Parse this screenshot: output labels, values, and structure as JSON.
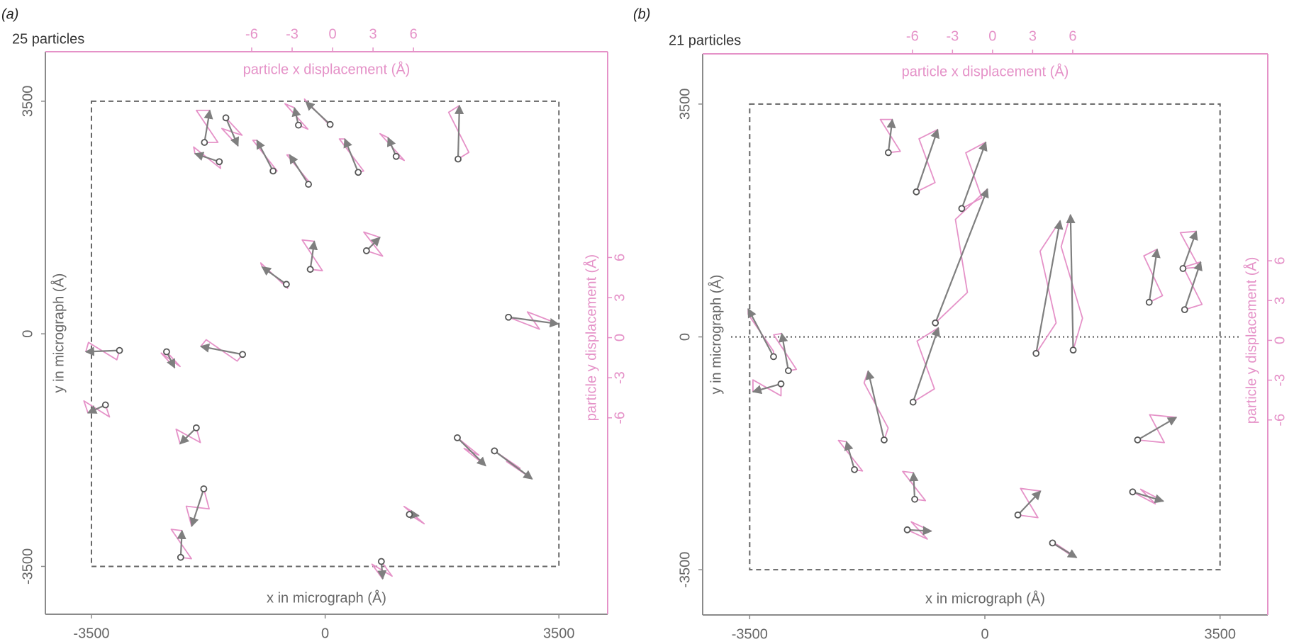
{
  "chart_data": [
    {
      "type": "vector",
      "panel_label": "(a)",
      "count_label": "25 particles",
      "xlabel": "x in micrograph (Å)",
      "ylabel": "y in micrograph (Å)",
      "x2label": "particle x displacement (Å)",
      "y2label": "particle y displacement (Å)",
      "xlim": [
        -4190,
        4230
      ],
      "ylim": [
        -4220,
        4245
      ],
      "xticks": [
        -3500,
        0,
        3500
      ],
      "yticks": [
        -3500,
        0,
        3500
      ],
      "x2lim": [
        -21.3,
        20.4
      ],
      "y2lim": [
        -20.7,
        21.4
      ],
      "x2ticks": [
        -6,
        -3,
        0,
        3,
        6
      ],
      "y2ticks": [
        -6,
        -3,
        0,
        3,
        6
      ],
      "image_bounds": [
        -3500,
        3500
      ],
      "track_color": "#e592c8",
      "arrow_color": "#7f7f7f",
      "particles": [
        {
          "x": -1808,
          "y": 2880,
          "dx": [
            0,
            1.0,
            -0.6,
            0.4
          ],
          "dy": [
            0,
            0.0,
            2.4,
            2.4
          ]
        },
        {
          "x": -1487,
          "y": 3250,
          "dx": [
            0,
            1.2,
            -0.3,
            0.9
          ],
          "dy": [
            0,
            -1.3,
            -0.8,
            -2.1
          ]
        },
        {
          "x": -1586,
          "y": 2590,
          "dx": [
            0,
            0.1,
            -1.9,
            -1.8
          ],
          "dy": [
            0,
            -0.5,
            1.1,
            0.6
          ]
        },
        {
          "x": -780,
          "y": 2450,
          "dx": [
            0,
            0.3,
            -1.5,
            -1.2
          ],
          "dy": [
            0,
            0.0,
            2.3,
            2.3
          ]
        },
        {
          "x": -400,
          "y": 3140,
          "dx": [
            0,
            0.7,
            -1.0,
            -0.3
          ],
          "dy": [
            0,
            -0.3,
            1.6,
            1.3
          ]
        },
        {
          "x": 74,
          "y": 3150,
          "dx": [
            0,
            0.1,
            -1.9,
            -1.8
          ],
          "dy": [
            0,
            -0.2,
            1.9,
            1.7
          ]
        },
        {
          "x": -250,
          "y": 2250,
          "dx": [
            0,
            0.2,
            -1.6,
            -1.4
          ],
          "dy": [
            0,
            0.0,
            2.2,
            2.2
          ]
        },
        {
          "x": 495,
          "y": 2430,
          "dx": [
            0,
            0.4,
            -1.4,
            -1.0
          ],
          "dy": [
            0,
            0.1,
            2.5,
            2.5
          ]
        },
        {
          "x": 1063,
          "y": 2670,
          "dx": [
            0,
            0.6,
            -1.2,
            -0.6
          ],
          "dy": [
            0,
            -0.3,
            1.7,
            1.4
          ]
        },
        {
          "x": 1990,
          "y": 2630,
          "dx": [
            0,
            0.8,
            -0.7,
            0.1
          ],
          "dy": [
            0,
            0.5,
            3.5,
            4.0
          ]
        },
        {
          "x": 618,
          "y": 1250,
          "dx": [
            0,
            1.2,
            -0.2,
            1.0
          ],
          "dy": [
            0,
            -0.4,
            1.4,
            1.0
          ]
        },
        {
          "x": -223,
          "y": 970,
          "dx": [
            0,
            0.9,
            -0.6,
            0.3
          ],
          "dy": [
            0,
            -0.1,
            2.2,
            2.1
          ]
        },
        {
          "x": -581,
          "y": 745,
          "dx": [
            0,
            0.1,
            -1.9,
            -1.8
          ],
          "dy": [
            0,
            -0.3,
            1.6,
            1.3
          ]
        },
        {
          "x": 2745,
          "y": 250,
          "dx": [
            0,
            2.3,
            1.4,
            3.7
          ],
          "dy": [
            0,
            -0.9,
            0.4,
            -0.5
          ]
        },
        {
          "x": -3080,
          "y": -250,
          "dx": [
            0,
            -0.2,
            -2.3,
            -2.5
          ],
          "dy": [
            0,
            -0.7,
            0.6,
            -0.1
          ]
        },
        {
          "x": -2375,
          "y": -270,
          "dx": [
            0,
            1.0,
            -0.4,
            0.6
          ],
          "dy": [
            0,
            -1.1,
            -0.1,
            -1.2
          ]
        },
        {
          "x": -1237,
          "y": -310,
          "dx": [
            0,
            -0.4,
            -2.7,
            -3.1
          ],
          "dy": [
            0,
            -0.5,
            1.1,
            0.6
          ]
        },
        {
          "x": -3290,
          "y": -1070,
          "dx": [
            0,
            0.3,
            -1.6,
            -1.3
          ],
          "dy": [
            0,
            -0.9,
            0.3,
            -0.6
          ]
        },
        {
          "x": -1930,
          "y": -1415,
          "dx": [
            0,
            0.3,
            -1.5,
            -1.2
          ],
          "dy": [
            0,
            -1.1,
            -0.1,
            -1.2
          ]
        },
        {
          "x": 1979,
          "y": -1564,
          "dx": [
            0,
            1.6,
            0.5,
            2.1
          ],
          "dy": [
            0,
            -1.3,
            -0.8,
            -2.1
          ]
        },
        {
          "x": 2535,
          "y": -1762,
          "dx": [
            0,
            1.9,
            0.9,
            2.8
          ],
          "dy": [
            0,
            -1.3,
            -0.8,
            -2.1
          ]
        },
        {
          "x": -1818,
          "y": -2333,
          "dx": [
            0,
            0.4,
            -1.3,
            -0.9
          ],
          "dy": [
            0,
            -1.5,
            -1.3,
            -2.8
          ]
        },
        {
          "x": -2164,
          "y": -3364,
          "dx": [
            0,
            0.8,
            -0.7,
            0.1
          ],
          "dy": [
            0,
            -0.1,
            2.1,
            2.0
          ]
        },
        {
          "x": 1261,
          "y": -2718,
          "dx": [
            0,
            1.1,
            -0.4,
            0.7
          ],
          "dy": [
            0,
            -0.7,
            0.6,
            -0.1
          ]
        },
        {
          "x": 841,
          "y": -3426,
          "dx": [
            0,
            0.8,
            -0.7,
            0.1
          ],
          "dy": [
            0,
            -1.1,
            -0.2,
            -1.3
          ]
        }
      ]
    },
    {
      "type": "vector",
      "panel_label": "(b)",
      "count_label": "21 particles",
      "xlabel": "x in micrograph (Å)",
      "ylabel": "y in micrograph (Å)",
      "x2label": "particle x displacement (Å)",
      "y2label": "particle y displacement (Å)",
      "xlim": [
        -4200,
        4210
      ],
      "ylim": [
        -4180,
        4255
      ],
      "xticks": [
        -3500,
        0,
        3500
      ],
      "yticks": [
        -3500,
        0,
        3500
      ],
      "x2lim": [
        -21.7,
        20.6
      ],
      "y2lim": [
        -20.7,
        21.6
      ],
      "x2ticks": [
        -6,
        -3,
        0,
        3,
        6
      ],
      "y2ticks": [
        -6,
        -3,
        0,
        3,
        6
      ],
      "image_bounds": [
        -3500,
        3500
      ],
      "hline": 0,
      "track_color": "#e592c8",
      "arrow_color": "#7f7f7f",
      "particles": [
        {
          "x": -1437,
          "y": 2770,
          "dx": [
            0,
            0.9,
            -0.6,
            0.3
          ],
          "dy": [
            0,
            0.1,
            2.5,
            2.5
          ]
        },
        {
          "x": -1020,
          "y": 2180,
          "dx": [
            0,
            1.4,
            0.2,
            1.6
          ],
          "dy": [
            0,
            0.7,
            4.0,
            4.7
          ]
        },
        {
          "x": -344,
          "y": 1930,
          "dx": [
            0,
            1.5,
            0.3,
            1.8
          ],
          "dy": [
            0,
            0.8,
            4.2,
            5.0
          ]
        },
        {
          "x": -737,
          "y": 210,
          "dx": [
            0,
            2.4,
            1.5,
            3.9
          ],
          "dy": [
            0,
            2.3,
            7.8,
            10.1
          ]
        },
        {
          "x": -1069,
          "y": -980,
          "dx": [
            0,
            1.6,
            0.3,
            1.9
          ],
          "dy": [
            0,
            1.0,
            4.6,
            5.6
          ]
        },
        {
          "x": 762,
          "y": -248,
          "dx": [
            0,
            1.5,
            0.3,
            1.8
          ],
          "dy": [
            0,
            2.3,
            7.7,
            10.0
          ]
        },
        {
          "x": 1314,
          "y": -198,
          "dx": [
            0,
            0.7,
            -0.9,
            -0.2
          ],
          "dy": [
            0,
            2.4,
            7.8,
            10.2
          ]
        },
        {
          "x": 2445,
          "y": 520,
          "dx": [
            0,
            1.0,
            -0.4,
            0.6
          ],
          "dy": [
            0,
            0.5,
            3.5,
            4.0
          ]
        },
        {
          "x": 2973,
          "y": 409,
          "dx": [
            0,
            1.3,
            -0.1,
            1.2
          ],
          "dy": [
            0,
            0.4,
            3.2,
            3.6
          ]
        },
        {
          "x": 2948,
          "y": 1028,
          "dx": [
            0,
            1.2,
            -0.2,
            1.0
          ],
          "dy": [
            0,
            0.1,
            2.7,
            2.8
          ]
        },
        {
          "x": -3145,
          "y": -297,
          "dx": [
            0,
            0.0,
            -1.9,
            -1.9
          ],
          "dy": [
            0,
            0.4,
            3.2,
            3.6
          ]
        },
        {
          "x": -2924,
          "y": -508,
          "dx": [
            0,
            0.6,
            -1.1,
            -0.5
          ],
          "dy": [
            0,
            0.1,
            2.7,
            2.8
          ]
        },
        {
          "x": -3034,
          "y": -706,
          "dx": [
            0,
            0.0,
            -2.1,
            -2.1
          ],
          "dy": [
            0,
            -0.9,
            0.3,
            -0.6
          ]
        },
        {
          "x": -1499,
          "y": -1549,
          "dx": [
            0,
            0.3,
            -1.5,
            -1.2
          ],
          "dy": [
            0,
            0.9,
            4.3,
            5.2
          ]
        },
        {
          "x": 2273,
          "y": -1549,
          "dx": [
            0,
            2.0,
            0.9,
            2.9
          ],
          "dy": [
            0,
            -0.2,
            1.9,
            1.7
          ]
        },
        {
          "x": -1941,
          "y": -1995,
          "dx": [
            0,
            0.6,
            -1.2,
            -0.6
          ],
          "dy": [
            0,
            -0.1,
            2.2,
            2.1
          ]
        },
        {
          "x": -1044,
          "y": -2441,
          "dx": [
            0,
            0.8,
            -0.9,
            -0.1
          ],
          "dy": [
            0,
            -0.1,
            2.1,
            2.0
          ]
        },
        {
          "x": -1155,
          "y": -2900,
          "dx": [
            0,
            1.5,
            0.3,
            1.8
          ],
          "dy": [
            0,
            -0.7,
            0.6,
            -0.1
          ]
        },
        {
          "x": 491,
          "y": -2677,
          "dx": [
            0,
            1.5,
            0.2,
            1.7
          ],
          "dy": [
            0,
            -0.2,
            2.0,
            1.8
          ]
        },
        {
          "x": 2199,
          "y": -2330,
          "dx": [
            0,
            1.7,
            0.6,
            2.3
          ],
          "dy": [
            0,
            -0.9,
            0.2,
            -0.7
          ]
        },
        {
          "x": 1007,
          "y": -3098,
          "dx": [
            0,
            1.5,
            0.3,
            1.8
          ],
          "dy": [
            0,
            -1.0,
            -0.1,
            -1.1
          ]
        }
      ]
    }
  ]
}
